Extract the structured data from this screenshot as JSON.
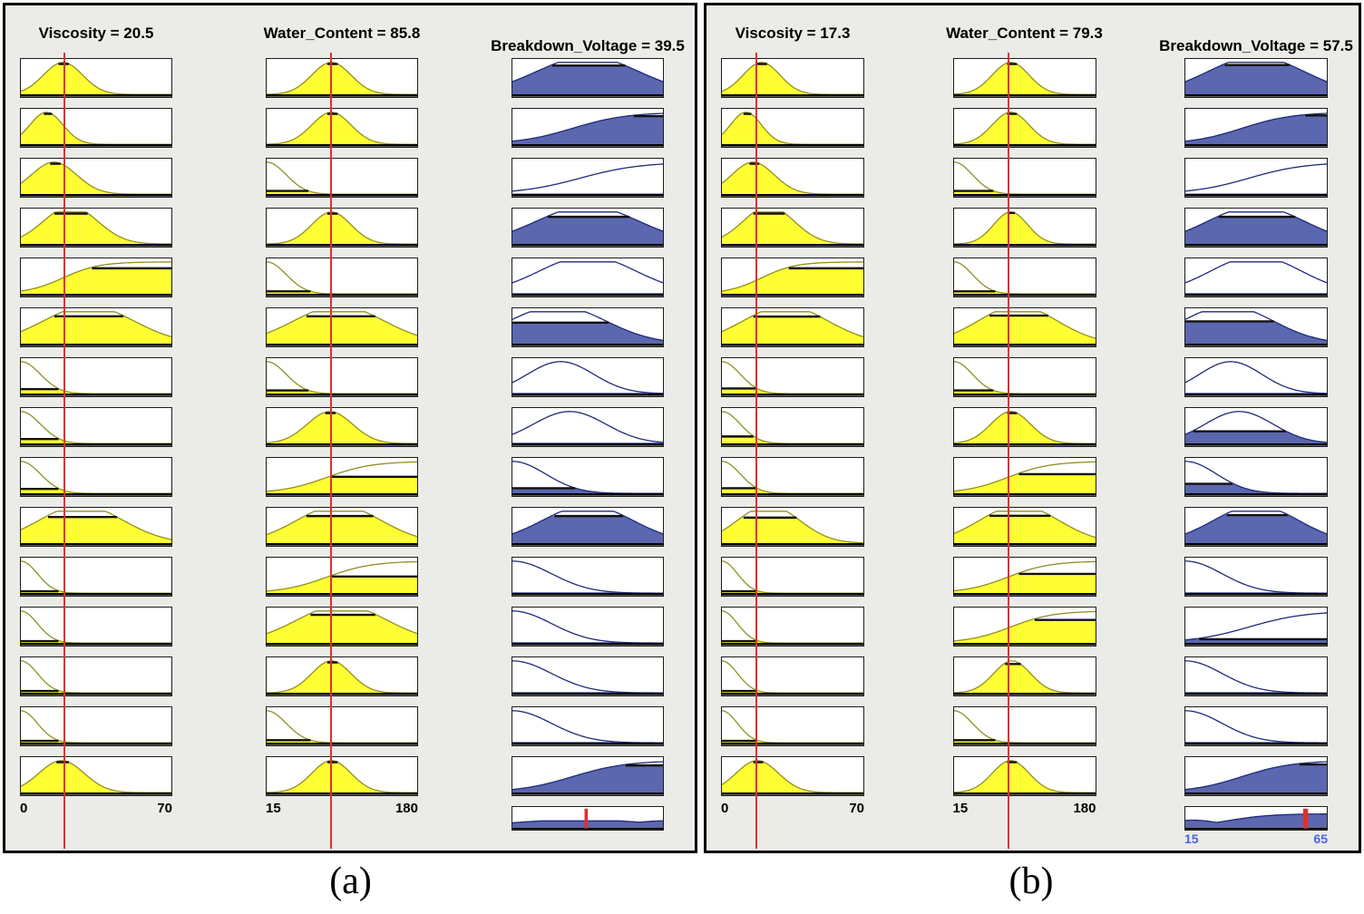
{
  "colors": {
    "yellow_fill": "#ffff33",
    "yellow_stroke": "#8f8f22",
    "blue_fill": "#5b67ae",
    "blue_stroke": "#1f2a7c",
    "red_line": "#e03030",
    "clip_bar": "#111111",
    "panel_bg": "#ebebe8",
    "axis_blue": "#4466dd",
    "axis_black": "#000000"
  },
  "captions": {
    "a": "(a)",
    "b": "(b)"
  },
  "chart_data": {
    "type": "area",
    "description": "Fuzzy inference rule viewer: two cases (a) and (b); 15 rules; columns are input membership functions (Viscosity, Water_Content, yellow) and output membership functions (Breakdown_Voltage, blue) with aggregated output and defuzzified value marker. Cell arrays are [shape, center, width, firing-level]; shapes g=gaussian, z=left-decay, s=rising sigmoid, b=broad plateau bump.",
    "panels": [
      {
        "id": "a",
        "caption": "(a)",
        "values": {
          "viscosity": 20.5,
          "water_content": 85.8,
          "breakdown_voltage": 39.5
        },
        "columns": [
          {
            "name": "viscosity",
            "kind": "input",
            "title": "Viscosity = 20.5",
            "range": [
              0,
              70
            ],
            "input_pos": 0.293,
            "axis": [
              "0",
              "70"
            ],
            "cells": [
              [
                "g",
                0.28,
                0.13,
                0.95
              ],
              [
                "g",
                0.17,
                0.11,
                0.95
              ],
              [
                "g",
                0.22,
                0.15,
                0.95
              ],
              [
                "b",
                0.33,
                0.18,
                0.95
              ],
              [
                "s",
                0.28,
                0.12,
                0.8
              ],
              [
                "b",
                0.45,
                0.3,
                0.86
              ],
              [
                "z",
                0,
                0.13,
                0.14
              ],
              [
                "z",
                0,
                0.13,
                0.14
              ],
              [
                "z",
                0,
                0.13,
                0.14
              ],
              [
                "b",
                0.4,
                0.28,
                0.82
              ],
              [
                "z",
                0,
                0.11,
                0.06
              ],
              [
                "z",
                0,
                0.11,
                0.06
              ],
              [
                "z",
                0,
                0.11,
                0.06
              ],
              [
                "z",
                0,
                0.11,
                0.06
              ],
              [
                "g",
                0.27,
                0.15,
                0.95
              ]
            ]
          },
          {
            "name": "water-content",
            "kind": "input",
            "title": "Water_Content = 85.8",
            "range": [
              15,
              180
            ],
            "input_pos": 0.429,
            "axis": [
              "15",
              "180"
            ],
            "cells": [
              [
                "g",
                0.43,
                0.13,
                0.95
              ],
              [
                "g",
                0.43,
                0.13,
                0.95
              ],
              [
                "z",
                0,
                0.13,
                0.1
              ],
              [
                "g",
                0.43,
                0.13,
                0.95
              ],
              [
                "z",
                0,
                0.13,
                0.08
              ],
              [
                "b",
                0.48,
                0.3,
                0.86
              ],
              [
                "z",
                0,
                0.13,
                0.1
              ],
              [
                "g",
                0.42,
                0.15,
                0.95
              ],
              [
                "s",
                0.4,
                0.15,
                0.52
              ],
              [
                "b",
                0.48,
                0.28,
                0.85
              ],
              [
                "s",
                0.4,
                0.15,
                0.52
              ],
              [
                "b",
                0.5,
                0.3,
                0.88
              ],
              [
                "g",
                0.43,
                0.13,
                0.95
              ],
              [
                "z",
                0,
                0.13,
                0.08
              ],
              [
                "g",
                0.43,
                0.13,
                0.95
              ]
            ]
          },
          {
            "name": "breakdown-voltage",
            "kind": "output",
            "title": "Breakdown_Voltage = 39.5",
            "range": [
              15,
              65
            ],
            "cells": [
              [
                "b",
                0.5,
                0.34,
                0.9
              ],
              [
                "s",
                0.4,
                0.18,
                0.88
              ],
              [
                "s",
                0.45,
                0.2,
                0.02
              ],
              [
                "b",
                0.5,
                0.34,
                0.85
              ],
              [
                "b",
                0.5,
                0.32,
                0.03
              ],
              [
                "b",
                0.3,
                0.32,
                0.66
              ],
              [
                "g",
                0.32,
                0.22,
                0.03
              ],
              [
                "g",
                0.38,
                0.24,
                0.03
              ],
              [
                "z",
                0,
                0.22,
                0.16
              ],
              [
                "b",
                0.5,
                0.3,
                0.85
              ],
              [
                "z",
                0,
                0.26,
                0.03
              ],
              [
                "z",
                0,
                0.26,
                0.03
              ],
              [
                "z",
                0,
                0.26,
                0.03
              ],
              [
                "z",
                0,
                0.26,
                0.03
              ],
              [
                "s",
                0.4,
                0.18,
                0.85
              ]
            ],
            "aggregate": {
              "comps": [
                [
                  "b",
                  0.45,
                  0.45,
                  0.38
                ],
                [
                  "s",
                  0.75,
                  0.1,
                  0.42
                ]
              ],
              "marker": 0.49,
              "marker_w": 2.2,
              "axis": [
                "",
                ""
              ]
            }
          }
        ]
      },
      {
        "id": "b",
        "caption": "(b)",
        "values": {
          "viscosity": 17.3,
          "water_content": 79.3,
          "breakdown_voltage": 57.5
        },
        "columns": [
          {
            "name": "viscosity",
            "kind": "input",
            "title": "Viscosity = 17.3",
            "range": [
              0,
              70
            ],
            "input_pos": 0.247,
            "axis": [
              "0",
              "70"
            ],
            "cells": [
              [
                "g",
                0.28,
                0.13,
                0.95
              ],
              [
                "g",
                0.17,
                0.11,
                0.95
              ],
              [
                "g",
                0.22,
                0.15,
                0.95
              ],
              [
                "b",
                0.33,
                0.18,
                0.95
              ],
              [
                "s",
                0.28,
                0.12,
                0.8
              ],
              [
                "b",
                0.45,
                0.3,
                0.85
              ],
              [
                "z",
                0,
                0.13,
                0.16
              ],
              [
                "z",
                0,
                0.13,
                0.22
              ],
              [
                "z",
                0,
                0.13,
                0.16
              ],
              [
                "b",
                0.33,
                0.22,
                0.8
              ],
              [
                "z",
                0,
                0.11,
                0.06
              ],
              [
                "z",
                0,
                0.11,
                0.06
              ],
              [
                "z",
                0,
                0.11,
                0.06
              ],
              [
                "z",
                0,
                0.11,
                0.06
              ],
              [
                "g",
                0.25,
                0.15,
                0.95
              ]
            ]
          },
          {
            "name": "water-content",
            "kind": "input",
            "title": "Water_Content = 79.3",
            "range": [
              15,
              180
            ],
            "input_pos": 0.39,
            "axis": [
              "15",
              "180"
            ],
            "cells": [
              [
                "g",
                0.4,
                0.13,
                0.95
              ],
              [
                "g",
                0.4,
                0.13,
                0.95
              ],
              [
                "z",
                0,
                0.13,
                0.1
              ],
              [
                "g",
                0.4,
                0.12,
                0.97
              ],
              [
                "z",
                0,
                0.13,
                0.08
              ],
              [
                "b",
                0.45,
                0.28,
                0.88
              ],
              [
                "z",
                0,
                0.13,
                0.1
              ],
              [
                "g",
                0.4,
                0.14,
                0.95
              ],
              [
                "s",
                0.38,
                0.15,
                0.6
              ],
              [
                "b",
                0.46,
                0.28,
                0.86
              ],
              [
                "s",
                0.38,
                0.15,
                0.6
              ],
              [
                "s",
                0.4,
                0.15,
                0.72
              ],
              [
                "g",
                0.41,
                0.13,
                0.9
              ],
              [
                "z",
                0,
                0.13,
                0.08
              ],
              [
                "g",
                0.4,
                0.13,
                0.95
              ]
            ]
          },
          {
            "name": "breakdown-voltage",
            "kind": "output",
            "title": "Breakdown_Voltage = 57.5",
            "range": [
              15,
              65
            ],
            "cells": [
              [
                "b",
                0.5,
                0.34,
                0.92
              ],
              [
                "s",
                0.4,
                0.18,
                0.9
              ],
              [
                "s",
                0.45,
                0.2,
                0.02
              ],
              [
                "b",
                0.5,
                0.34,
                0.85
              ],
              [
                "b",
                0.5,
                0.32,
                0.03
              ],
              [
                "b",
                0.3,
                0.32,
                0.7
              ],
              [
                "g",
                0.32,
                0.22,
                0.03
              ],
              [
                "g",
                0.38,
                0.24,
                0.38
              ],
              [
                "z",
                0,
                0.22,
                0.3
              ],
              [
                "b",
                0.5,
                0.3,
                0.88
              ],
              [
                "z",
                0,
                0.26,
                0.03
              ],
              [
                "s",
                0.45,
                0.2,
                0.12
              ],
              [
                "z",
                0,
                0.26,
                0.03
              ],
              [
                "z",
                0,
                0.26,
                0.03
              ],
              [
                "s",
                0.4,
                0.18,
                0.88
              ]
            ],
            "aggregate": {
              "comps": [
                [
                  "s",
                  0.3,
                  0.15,
                  0.78
                ],
                [
                  "g",
                  0.05,
                  0.2,
                  0.42
                ]
              ],
              "marker": 0.85,
              "marker_w": 3.5,
              "axis": [
                "15",
                "65"
              ]
            }
          }
        ]
      }
    ]
  }
}
